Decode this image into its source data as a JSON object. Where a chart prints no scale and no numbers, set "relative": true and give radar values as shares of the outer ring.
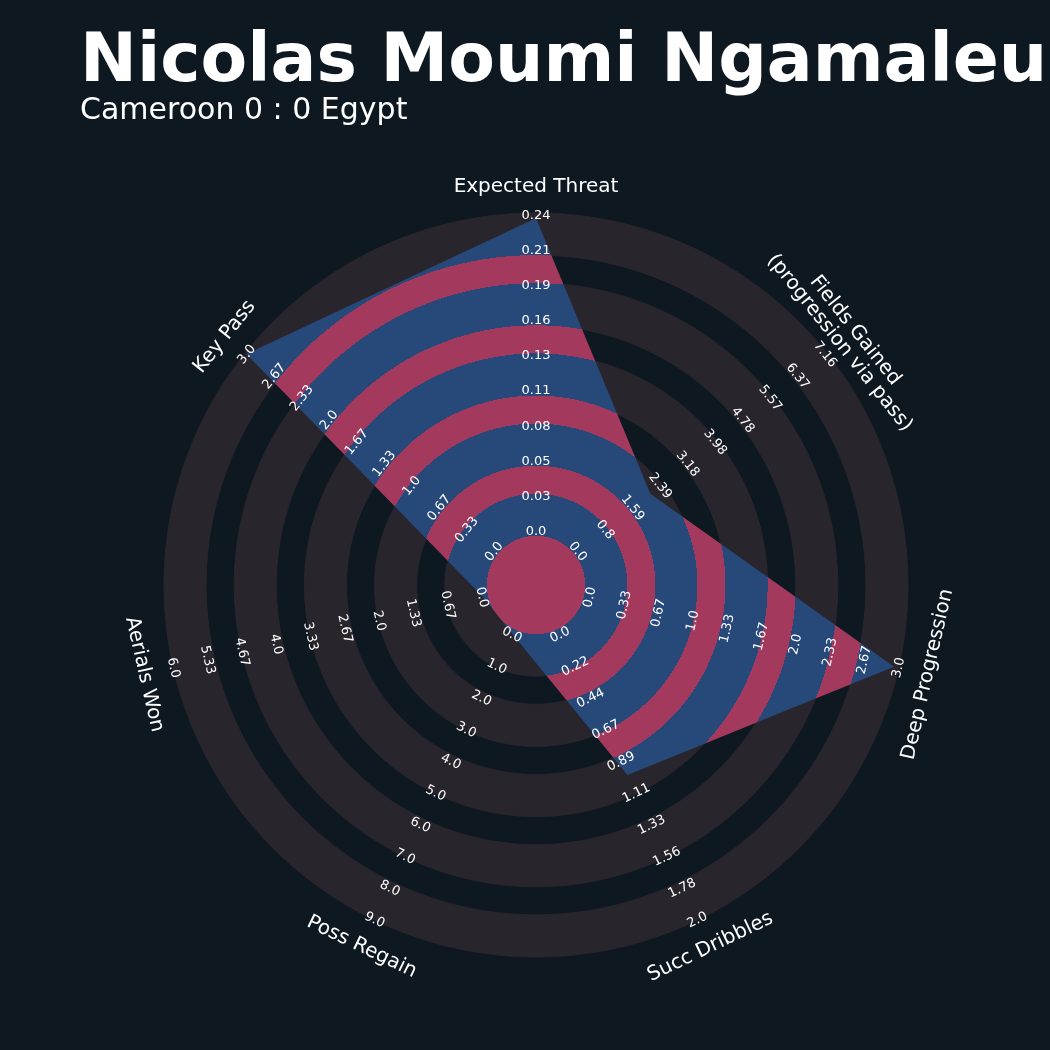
{
  "chart_data": {
    "type": "radar",
    "title": "Nicolas Moumi Ngamaleu",
    "subtitle": "Cameroon 0 : 0 Egypt",
    "relative": true,
    "grid": true,
    "categories": [
      "Expected Threat",
      "Fields Gained\n(progression via pass)",
      "Deep Progression",
      "Succ Dribbles",
      "Poss Regain",
      "Aerials Won",
      "Key Pass"
    ],
    "series": [
      {
        "color": "#27497a",
        "values": [
          0.986,
          0.393,
          0.987,
          0.567,
          0.146,
          0.146,
          0.996
        ]
      }
    ],
    "annotations": [
      "0.0",
      "0.03",
      "0.05",
      "0.08",
      "0.11",
      "0.13",
      "0.16",
      "0.19",
      "0.21",
      "0.24",
      "0.0",
      "0.8",
      "1.59",
      "2.39",
      "3.18",
      "3.98",
      "4.78",
      "5.57",
      "6.37",
      "7.16",
      "0.0",
      "0.33",
      "0.67",
      "1.0",
      "1.33",
      "1.67",
      "2.0",
      "2.33",
      "2.67",
      "3.0",
      "0.0",
      "0.22",
      "0.44",
      "0.67",
      "0.89",
      "1.11",
      "1.33",
      "1.56",
      "1.78",
      "2.0",
      "0.0",
      "1.0",
      "2.0",
      "3.0",
      "4.0",
      "5.0",
      "6.0",
      "7.0",
      "8.0",
      "9.0",
      "0.0",
      "0.67",
      "1.33",
      "2.0",
      "2.67",
      "3.33",
      "4.0",
      "4.67",
      "5.33",
      "6.0",
      "0.0",
      "0.33",
      "0.67",
      "1.0",
      "1.33",
      "1.67",
      "2.0",
      "2.33",
      "2.67",
      "3.0"
    ]
  }
}
